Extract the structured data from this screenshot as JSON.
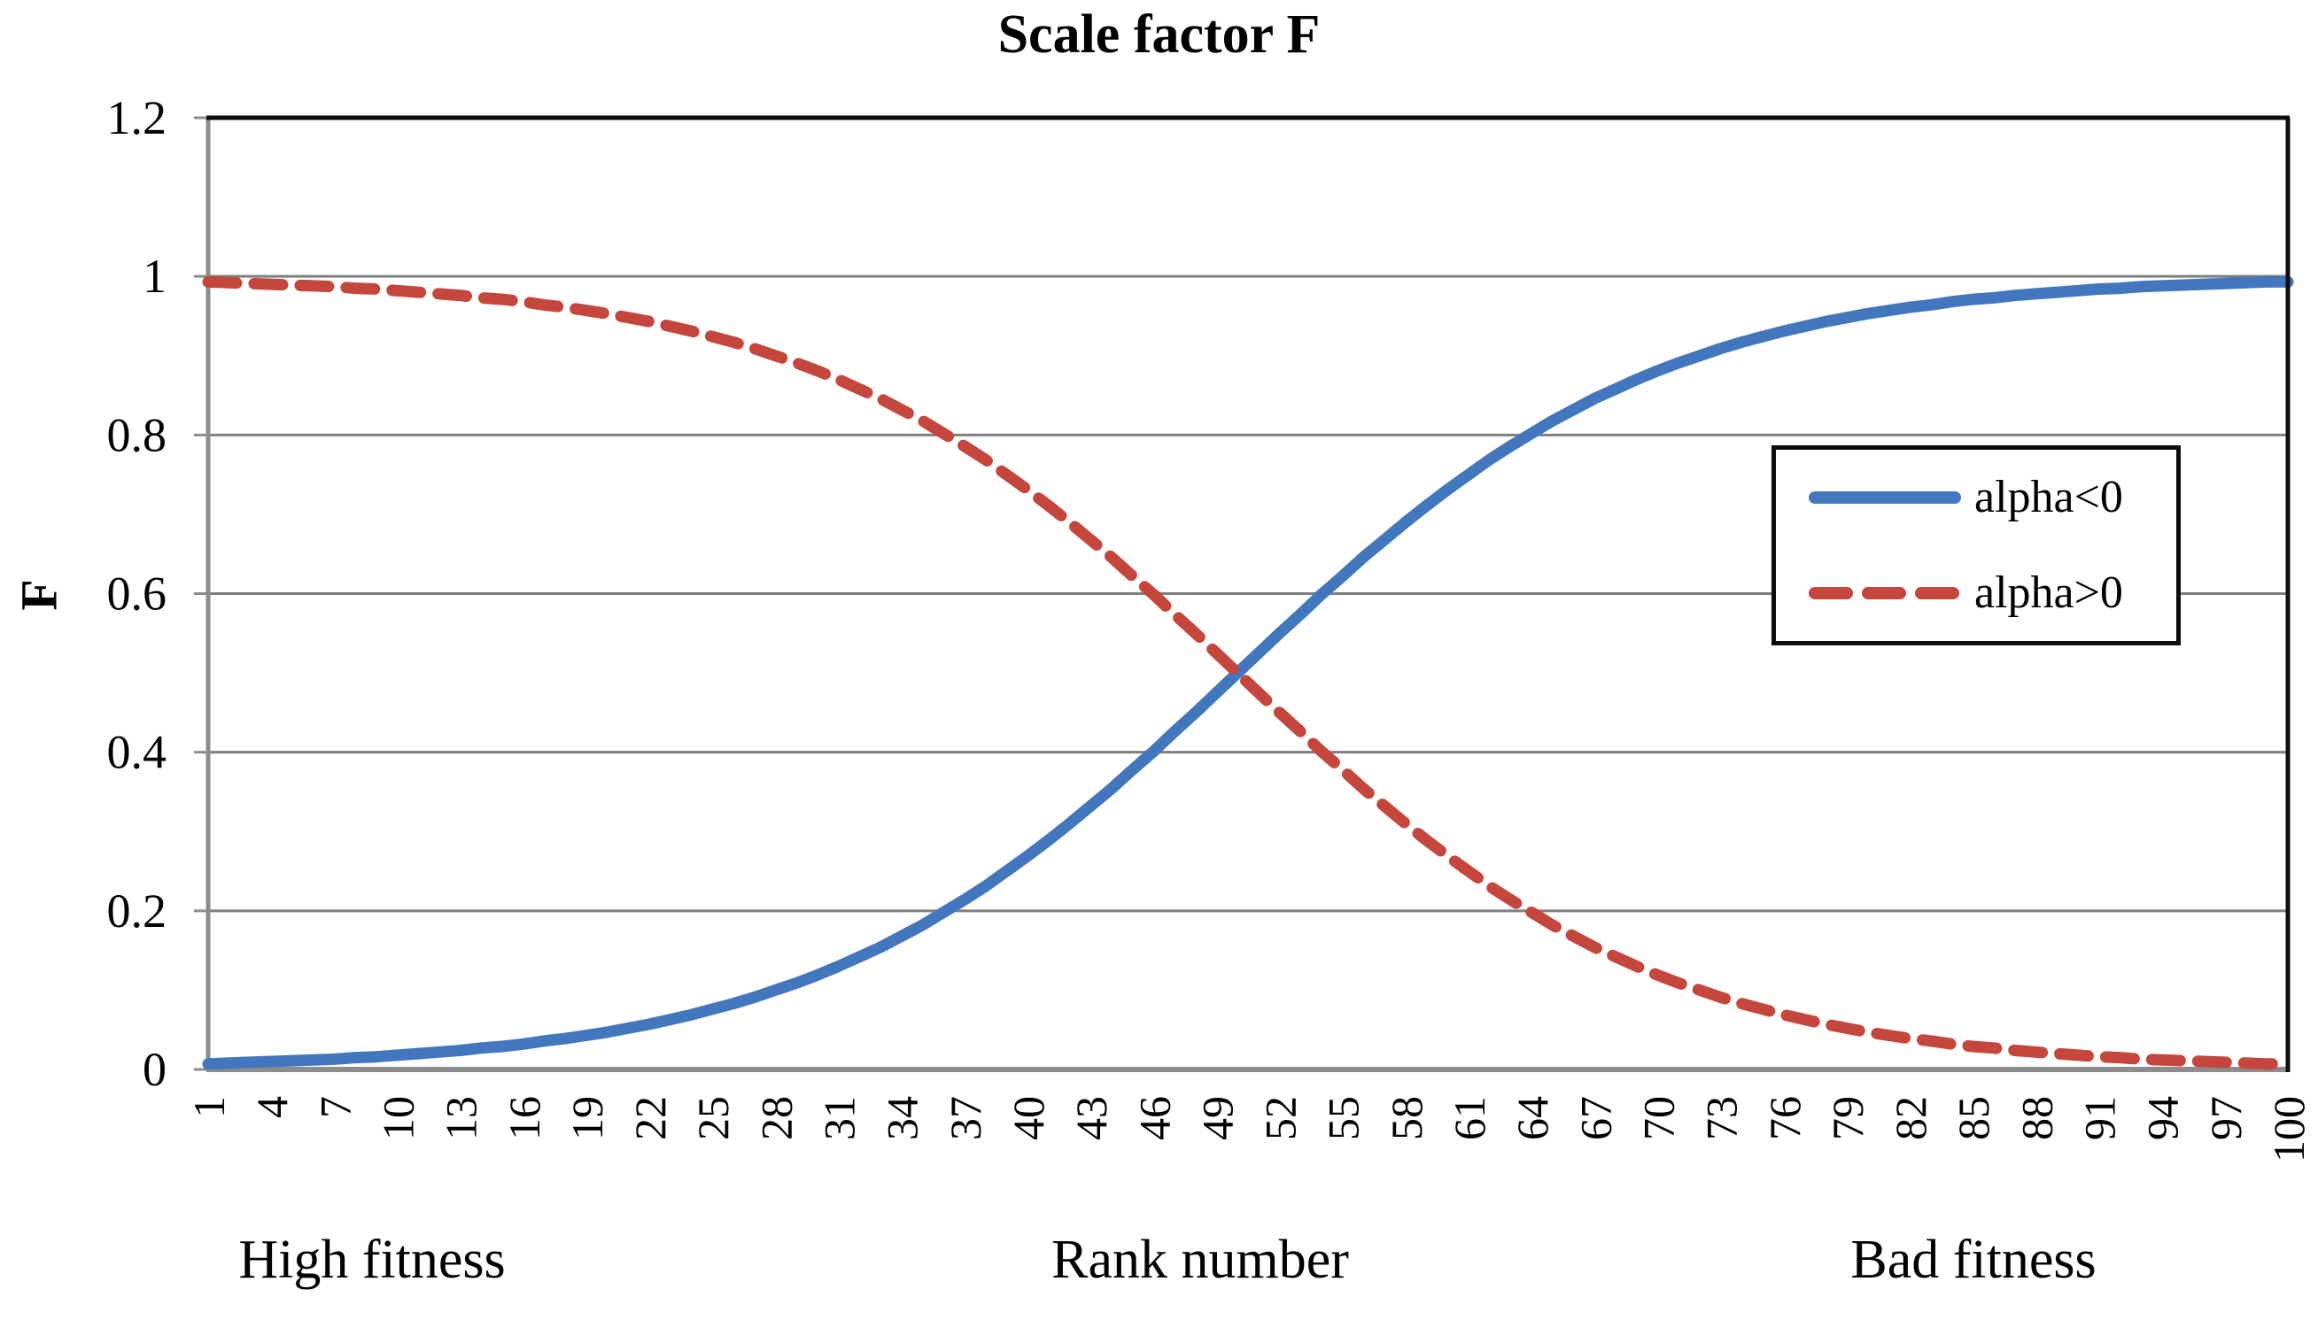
{
  "chart_data": {
    "type": "line",
    "title": "Scale factor F",
    "xlabel": "Rank number",
    "ylabel": "F",
    "xlim": [
      1,
      100
    ],
    "ylim": [
      0,
      1.2
    ],
    "grid": "horizontal",
    "legend_position": "inside-right-middle",
    "x_tick_labels": [
      "1",
      "4",
      "7",
      "10",
      "13",
      "16",
      "19",
      "22",
      "25",
      "28",
      "31",
      "34",
      "37",
      "40",
      "43",
      "46",
      "49",
      "52",
      "55",
      "58",
      "61",
      "64",
      "67",
      "70",
      "73",
      "76",
      "79",
      "82",
      "85",
      "88",
      "91",
      "94",
      "97",
      "100"
    ],
    "y_tick_labels": [
      "0",
      "0.2",
      "0.4",
      "0.6",
      "0.8",
      "1",
      "1.2"
    ],
    "y_tick_values": [
      0,
      0.2,
      0.4,
      0.6,
      0.8,
      1,
      1.2
    ],
    "x": [
      1,
      2,
      3,
      4,
      5,
      6,
      7,
      8,
      9,
      10,
      11,
      12,
      13,
      14,
      15,
      16,
      17,
      18,
      19,
      20,
      21,
      22,
      23,
      24,
      25,
      26,
      27,
      28,
      29,
      30,
      31,
      32,
      33,
      34,
      35,
      36,
      37,
      38,
      39,
      40,
      41,
      42,
      43,
      44,
      45,
      46,
      47,
      48,
      49,
      50,
      51,
      52,
      53,
      54,
      55,
      56,
      57,
      58,
      59,
      60,
      61,
      62,
      63,
      64,
      65,
      66,
      67,
      68,
      69,
      70,
      71,
      72,
      73,
      74,
      75,
      76,
      77,
      78,
      79,
      80,
      81,
      82,
      83,
      84,
      85,
      86,
      87,
      88,
      89,
      90,
      91,
      92,
      93,
      94,
      95,
      96,
      97,
      98,
      99,
      100
    ],
    "series": [
      {
        "name": "alpha<0",
        "style": "solid",
        "color": "#4277BD",
        "values": [
          0.007,
          0.008,
          0.009,
          0.01,
          0.011,
          0.012,
          0.013,
          0.015,
          0.016,
          0.018,
          0.02,
          0.022,
          0.024,
          0.027,
          0.029,
          0.032,
          0.036,
          0.039,
          0.043,
          0.047,
          0.052,
          0.057,
          0.063,
          0.069,
          0.076,
          0.083,
          0.091,
          0.1,
          0.109,
          0.119,
          0.13,
          0.142,
          0.154,
          0.168,
          0.182,
          0.198,
          0.214,
          0.231,
          0.25,
          0.269,
          0.289,
          0.31,
          0.332,
          0.354,
          0.378,
          0.401,
          0.426,
          0.45,
          0.475,
          0.5,
          0.525,
          0.55,
          0.574,
          0.599,
          0.622,
          0.646,
          0.668,
          0.69,
          0.711,
          0.731,
          0.75,
          0.769,
          0.786,
          0.802,
          0.818,
          0.832,
          0.846,
          0.858,
          0.87,
          0.881,
          0.891,
          0.9,
          0.909,
          0.917,
          0.924,
          0.931,
          0.937,
          0.943,
          0.948,
          0.953,
          0.957,
          0.961,
          0.964,
          0.968,
          0.971,
          0.973,
          0.976,
          0.978,
          0.98,
          0.982,
          0.984,
          0.985,
          0.987,
          0.988,
          0.989,
          0.99,
          0.991,
          0.992,
          0.993,
          0.993
        ]
      },
      {
        "name": "alpha>0",
        "style": "dashed",
        "color": "#C5463C",
        "values": [
          0.993,
          0.992,
          0.991,
          0.99,
          0.989,
          0.988,
          0.987,
          0.985,
          0.984,
          0.982,
          0.98,
          0.978,
          0.976,
          0.973,
          0.971,
          0.968,
          0.964,
          0.961,
          0.957,
          0.953,
          0.948,
          0.943,
          0.937,
          0.931,
          0.924,
          0.917,
          0.909,
          0.9,
          0.891,
          0.881,
          0.87,
          0.858,
          0.846,
          0.832,
          0.818,
          0.802,
          0.786,
          0.769,
          0.75,
          0.731,
          0.711,
          0.69,
          0.668,
          0.646,
          0.622,
          0.599,
          0.574,
          0.55,
          0.525,
          0.5,
          0.475,
          0.45,
          0.426,
          0.401,
          0.378,
          0.354,
          0.332,
          0.31,
          0.289,
          0.269,
          0.25,
          0.231,
          0.214,
          0.198,
          0.182,
          0.168,
          0.154,
          0.142,
          0.13,
          0.119,
          0.109,
          0.1,
          0.091,
          0.083,
          0.076,
          0.069,
          0.063,
          0.057,
          0.052,
          0.047,
          0.043,
          0.039,
          0.036,
          0.032,
          0.029,
          0.027,
          0.024,
          0.022,
          0.02,
          0.018,
          0.016,
          0.015,
          0.013,
          0.012,
          0.011,
          0.01,
          0.009,
          0.008,
          0.007,
          0.007
        ]
      }
    ],
    "annotations": [
      {
        "text": "High fitness",
        "position": "below-axis-left"
      },
      {
        "text": "Bad fitness",
        "position": "below-axis-right"
      }
    ]
  },
  "colors": {
    "background": "#ffffff",
    "gridline": "#7f7f7f",
    "axis_gray": "#8c8c8c",
    "border_black": "#0d0d0d",
    "text": "#000000"
  }
}
